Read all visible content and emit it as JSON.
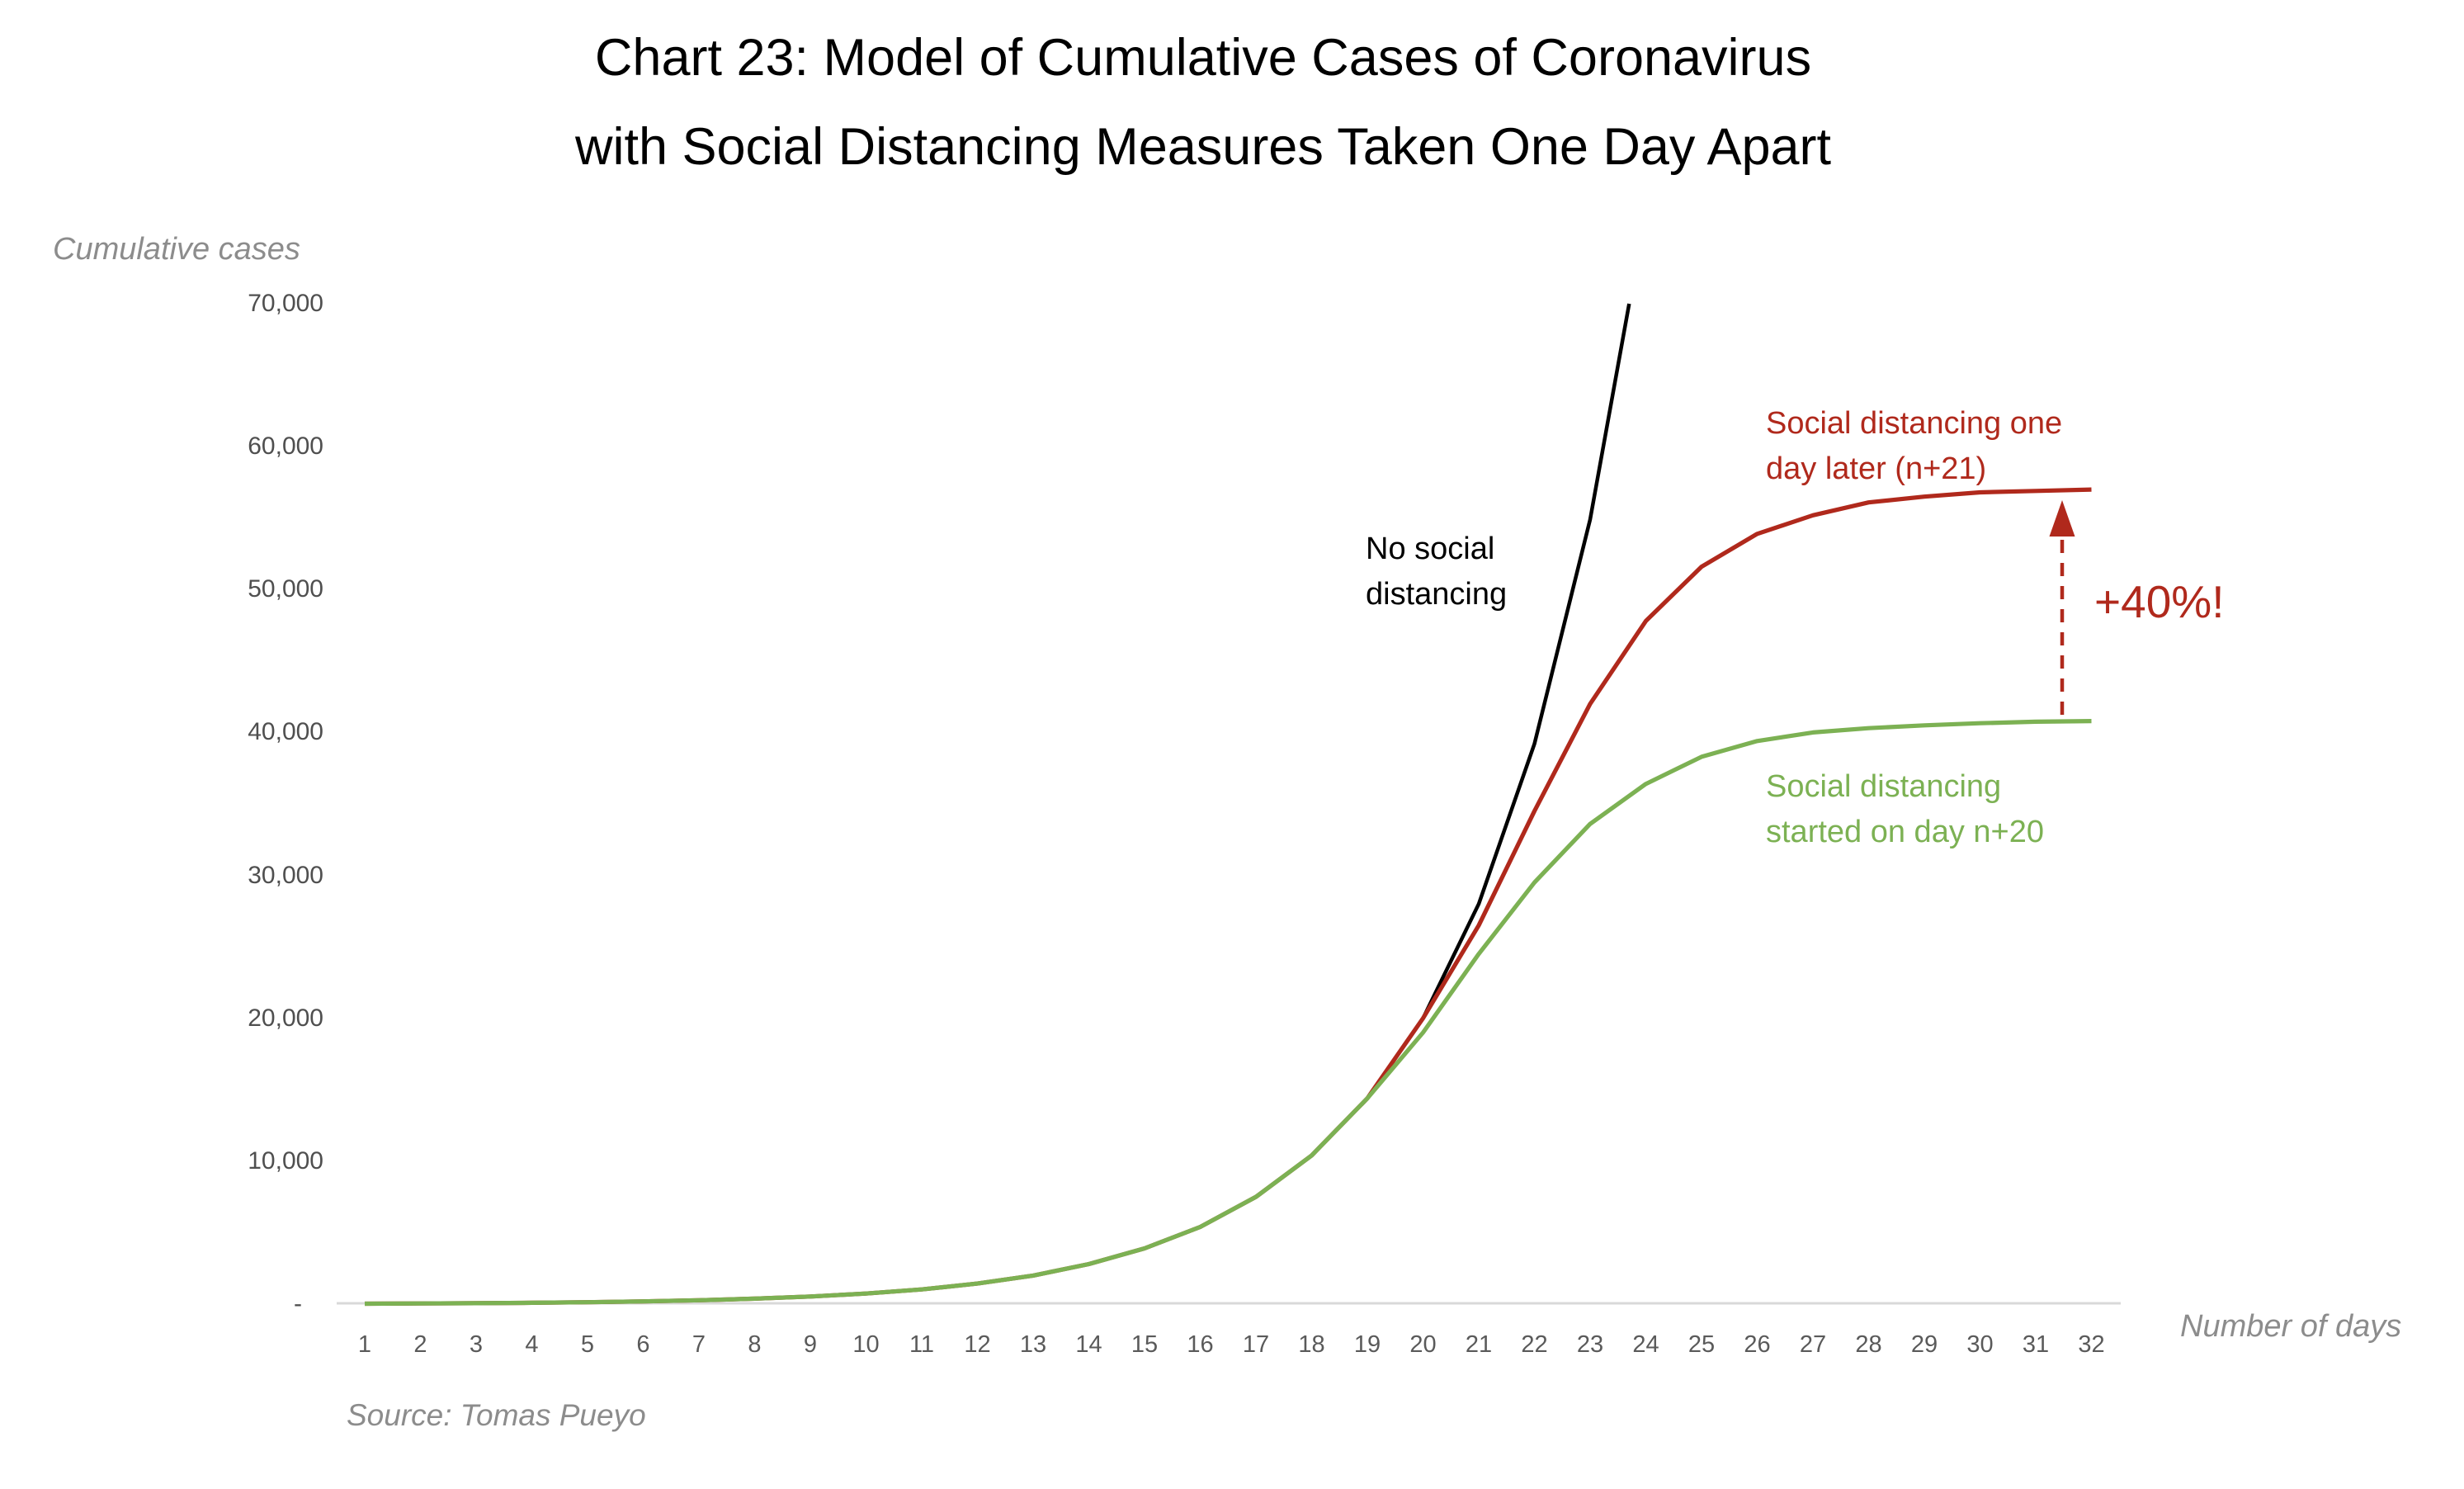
{
  "title": {
    "line1": "Chart 23: Model of Cumulative Cases of Coronavirus",
    "line2": "with Social Distancing Measures Taken One Day Apart"
  },
  "y_axis": {
    "label": "Cumulative cases",
    "ticks": [
      {
        "label": "70,000",
        "value": 70000
      },
      {
        "label": "60,000",
        "value": 60000
      },
      {
        "label": "50,000",
        "value": 50000
      },
      {
        "label": "40,000",
        "value": 40000
      },
      {
        "label": "30,000",
        "value": 30000
      },
      {
        "label": "20,000",
        "value": 20000
      },
      {
        "label": "10,000",
        "value": 10000
      },
      {
        "label": "-",
        "value": 0
      }
    ]
  },
  "x_axis": {
    "label": "Number of days",
    "ticks": [
      "1",
      "2",
      "3",
      "4",
      "5",
      "6",
      "7",
      "8",
      "9",
      "10",
      "11",
      "12",
      "13",
      "14",
      "15",
      "16",
      "17",
      "18",
      "19",
      "20",
      "21",
      "22",
      "23",
      "24",
      "25",
      "26",
      "27",
      "28",
      "29",
      "30",
      "31",
      "32"
    ]
  },
  "source": "Source: Tomas Pueyo",
  "annotations": {
    "no_social": {
      "line1": "No social",
      "line2": "distancing",
      "color": "#000000"
    },
    "one_day_later": {
      "line1": "Social distancing one",
      "line2": "day later (n+21)",
      "color": "#b0291c"
    },
    "started_day20": {
      "line1": "Social distancing",
      "line2": "started on day n+20",
      "color": "#7cb153"
    },
    "pct_callout": {
      "text": "+40%!",
      "color": "#b0291c"
    }
  },
  "colors": {
    "red": "#b0291c",
    "green": "#7cb153",
    "black": "#000000",
    "axis_line": "#d9d9d9",
    "muted_text": "#8c8c8c",
    "tick_text": "#5a5a5a"
  },
  "chart_data": {
    "type": "line",
    "title": "Chart 23: Model of Cumulative Cases of Coronavirus with Social Distancing Measures Taken One Day Apart",
    "xlabel": "Number of days",
    "ylabel": "Cumulative cases",
    "xlim": [
      1,
      32
    ],
    "ylim": [
      0,
      70000
    ],
    "grid": false,
    "legend_position": "inline-annotations",
    "series": [
      {
        "name": "No social distancing",
        "color": "#000000",
        "points": [
          [
            1,
            30
          ],
          [
            2,
            45
          ],
          [
            3,
            65
          ],
          [
            4,
            95
          ],
          [
            5,
            135
          ],
          [
            6,
            190
          ],
          [
            7,
            270
          ],
          [
            8,
            380
          ],
          [
            9,
            530
          ],
          [
            10,
            740
          ],
          [
            11,
            1030
          ],
          [
            12,
            1440
          ],
          [
            13,
            2000
          ],
          [
            14,
            2800
          ],
          [
            15,
            3900
          ],
          [
            16,
            5400
          ],
          [
            17,
            7500
          ],
          [
            18,
            10400
          ],
          [
            19,
            14400
          ],
          [
            20,
            20000
          ],
          [
            21,
            28000
          ],
          [
            22,
            39200
          ],
          [
            23,
            54900
          ],
          [
            23.7,
            70000
          ]
        ]
      },
      {
        "name": "Social distancing one day later (n+21)",
        "color": "#b0291c",
        "points": [
          [
            1,
            30
          ],
          [
            2,
            45
          ],
          [
            3,
            65
          ],
          [
            4,
            95
          ],
          [
            5,
            135
          ],
          [
            6,
            190
          ],
          [
            7,
            270
          ],
          [
            8,
            380
          ],
          [
            9,
            530
          ],
          [
            10,
            740
          ],
          [
            11,
            1030
          ],
          [
            12,
            1440
          ],
          [
            13,
            2000
          ],
          [
            14,
            2800
          ],
          [
            15,
            3900
          ],
          [
            16,
            5400
          ],
          [
            17,
            7500
          ],
          [
            18,
            10400
          ],
          [
            19,
            14400
          ],
          [
            20,
            20000
          ],
          [
            21,
            26500
          ],
          [
            22,
            34500
          ],
          [
            23,
            42000
          ],
          [
            24,
            47800
          ],
          [
            25,
            51600
          ],
          [
            26,
            53900
          ],
          [
            27,
            55200
          ],
          [
            28,
            56100
          ],
          [
            29,
            56500
          ],
          [
            30,
            56800
          ],
          [
            31,
            56900
          ],
          [
            32,
            57000
          ]
        ]
      },
      {
        "name": "Social distancing started on day n+20",
        "color": "#7cb153",
        "points": [
          [
            1,
            30
          ],
          [
            2,
            45
          ],
          [
            3,
            65
          ],
          [
            4,
            95
          ],
          [
            5,
            135
          ],
          [
            6,
            190
          ],
          [
            7,
            270
          ],
          [
            8,
            380
          ],
          [
            9,
            530
          ],
          [
            10,
            740
          ],
          [
            11,
            1030
          ],
          [
            12,
            1440
          ],
          [
            13,
            2000
          ],
          [
            14,
            2800
          ],
          [
            15,
            3900
          ],
          [
            16,
            5400
          ],
          [
            17,
            7500
          ],
          [
            18,
            10400
          ],
          [
            19,
            14400
          ],
          [
            20,
            19000
          ],
          [
            21,
            24500
          ],
          [
            22,
            29500
          ],
          [
            23,
            33600
          ],
          [
            24,
            36400
          ],
          [
            25,
            38300
          ],
          [
            26,
            39400
          ],
          [
            27,
            40000
          ],
          [
            28,
            40300
          ],
          [
            29,
            40500
          ],
          [
            30,
            40650
          ],
          [
            31,
            40750
          ],
          [
            32,
            40800
          ]
        ]
      }
    ]
  }
}
